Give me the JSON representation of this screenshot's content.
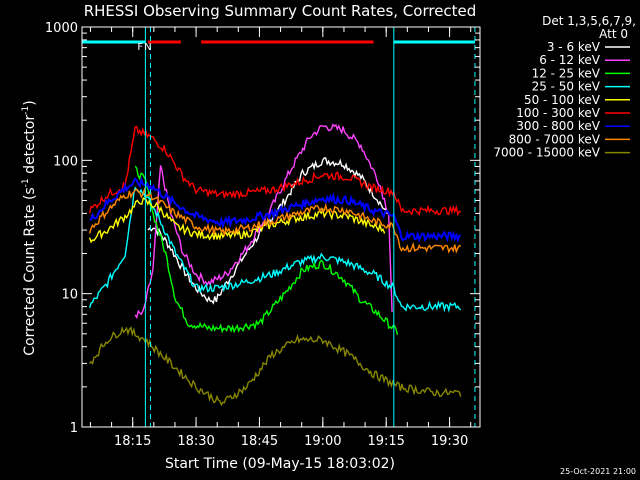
{
  "chart_data": {
    "type": "line",
    "title": "RHESSI Observing Summary Count Rates, Corrected",
    "xlabel": "Start Time (09-May-15 18:03:02)",
    "ylabel_main": "Corrected Count Rate (s",
    "ylabel_sup1": "-1",
    "ylabel_mid": " detector",
    "ylabel_sup2": "-1",
    "ylabel_end": ")",
    "yscale": "log",
    "ylim": [
      1,
      1000
    ],
    "xlim_minutes": [
      18.05,
      19.62
    ],
    "y_ticks": [
      {
        "value": 1,
        "label": "1"
      },
      {
        "value": 10,
        "label": "10"
      },
      {
        "value": 100,
        "label": "100"
      },
      {
        "value": 1000,
        "label": "1000"
      }
    ],
    "x_ticks": [
      {
        "value": 18.25,
        "label": "18:15"
      },
      {
        "value": 18.5,
        "label": "18:30"
      },
      {
        "value": 18.75,
        "label": "18:45"
      },
      {
        "value": 19.0,
        "label": "19:00"
      },
      {
        "value": 19.25,
        "label": "19:15"
      },
      {
        "value": 19.5,
        "label": "19:30"
      }
    ],
    "legend_header": "Det 1,3,5,6,7,9,",
    "legend_att": "Att 0",
    "legend_position": "top-right",
    "series": [
      {
        "name": "3 - 6 keV",
        "color": "#ffffff",
        "points": [
          [
            18.31,
            30
          ],
          [
            18.33,
            32
          ],
          [
            18.36,
            28
          ],
          [
            18.4,
            22
          ],
          [
            18.45,
            15
          ],
          [
            18.5,
            11
          ],
          [
            18.55,
            9
          ],
          [
            18.58,
            9
          ],
          [
            18.62,
            12
          ],
          [
            18.68,
            18
          ],
          [
            18.75,
            28
          ],
          [
            18.85,
            50
          ],
          [
            18.92,
            80
          ],
          [
            19.0,
            100
          ],
          [
            19.08,
            95
          ],
          [
            19.15,
            75
          ],
          [
            19.22,
            50
          ],
          [
            19.26,
            38
          ]
        ]
      },
      {
        "name": "6 - 12 keV",
        "color": "#ff44ff",
        "points": [
          [
            18.26,
            7
          ],
          [
            18.29,
            7
          ],
          [
            18.33,
            15
          ],
          [
            18.36,
            90
          ],
          [
            18.4,
            40
          ],
          [
            18.45,
            20
          ],
          [
            18.5,
            14
          ],
          [
            18.55,
            12
          ],
          [
            18.62,
            14
          ],
          [
            18.7,
            22
          ],
          [
            18.8,
            45
          ],
          [
            18.88,
            90
          ],
          [
            18.95,
            150
          ],
          [
            19.0,
            180
          ],
          [
            19.08,
            170
          ],
          [
            19.15,
            130
          ],
          [
            19.22,
            70
          ],
          [
            19.26,
            40
          ],
          [
            19.28,
            3
          ]
        ]
      },
      {
        "name": "12 - 25 keV",
        "color": "#00ff00",
        "points": [
          [
            18.26,
            85
          ],
          [
            18.3,
            70
          ],
          [
            18.33,
            40
          ],
          [
            18.38,
            20
          ],
          [
            18.42,
            9
          ],
          [
            18.47,
            6
          ],
          [
            18.55,
            5.5
          ],
          [
            18.65,
            5.5
          ],
          [
            18.75,
            6
          ],
          [
            18.85,
            10
          ],
          [
            18.92,
            15
          ],
          [
            19.0,
            17
          ],
          [
            19.08,
            13
          ],
          [
            19.15,
            9
          ],
          [
            19.22,
            7
          ],
          [
            19.3,
            5
          ]
        ]
      },
      {
        "name": "25 - 50 keV",
        "color": "#00ffff",
        "points": [
          [
            18.08,
            8
          ],
          [
            18.15,
            12
          ],
          [
            18.22,
            20
          ],
          [
            18.26,
            65
          ],
          [
            18.3,
            55
          ],
          [
            18.35,
            38
          ],
          [
            18.42,
            20
          ],
          [
            18.5,
            11
          ],
          [
            18.58,
            11
          ],
          [
            18.68,
            12
          ],
          [
            18.8,
            14
          ],
          [
            18.9,
            17
          ],
          [
            19.0,
            19
          ],
          [
            19.1,
            17
          ],
          [
            19.2,
            14
          ],
          [
            19.28,
            11
          ],
          [
            19.31,
            8
          ],
          [
            19.45,
            8
          ],
          [
            19.55,
            8
          ]
        ]
      },
      {
        "name": "50 - 100 keV",
        "color": "#ffff00",
        "points": [
          [
            18.08,
            25
          ],
          [
            18.15,
            30
          ],
          [
            18.22,
            38
          ],
          [
            18.28,
            50
          ],
          [
            18.35,
            45
          ],
          [
            18.42,
            32
          ],
          [
            18.5,
            28
          ],
          [
            18.6,
            27
          ],
          [
            18.7,
            28
          ],
          [
            18.8,
            33
          ],
          [
            18.9,
            37
          ],
          [
            19.0,
            40
          ],
          [
            19.1,
            38
          ],
          [
            19.2,
            32
          ],
          [
            19.25,
            30
          ]
        ]
      },
      {
        "name": "100 - 300 keV",
        "color": "#ff0000",
        "points": [
          [
            18.08,
            42
          ],
          [
            18.15,
            55
          ],
          [
            18.22,
            65
          ],
          [
            18.26,
            170
          ],
          [
            18.32,
            150
          ],
          [
            18.38,
            120
          ],
          [
            18.45,
            75
          ],
          [
            18.5,
            60
          ],
          [
            18.6,
            55
          ],
          [
            18.7,
            57
          ],
          [
            18.8,
            60
          ],
          [
            18.9,
            68
          ],
          [
            19.0,
            78
          ],
          [
            19.1,
            75
          ],
          [
            19.2,
            62
          ],
          [
            19.28,
            58
          ],
          [
            19.31,
            42
          ],
          [
            19.45,
            42
          ],
          [
            19.55,
            42
          ]
        ]
      },
      {
        "name": "300 - 800 keV",
        "color": "#0000ff",
        "points": [
          [
            18.08,
            35
          ],
          [
            18.15,
            48
          ],
          [
            18.22,
            62
          ],
          [
            18.26,
            68
          ],
          [
            18.32,
            65
          ],
          [
            18.4,
            50
          ],
          [
            18.5,
            38
          ],
          [
            18.6,
            34
          ],
          [
            18.7,
            36
          ],
          [
            18.8,
            40
          ],
          [
            18.9,
            46
          ],
          [
            19.0,
            52
          ],
          [
            19.1,
            50
          ],
          [
            19.2,
            42
          ],
          [
            19.28,
            38
          ],
          [
            19.31,
            27
          ],
          [
            19.45,
            27
          ],
          [
            19.55,
            27
          ]
        ]
      },
      {
        "name": "800 - 7000 keV",
        "color": "#ff8800",
        "points": [
          [
            18.08,
            30
          ],
          [
            18.15,
            42
          ],
          [
            18.22,
            55
          ],
          [
            18.26,
            58
          ],
          [
            18.32,
            55
          ],
          [
            18.4,
            42
          ],
          [
            18.5,
            32
          ],
          [
            18.6,
            29
          ],
          [
            18.7,
            31
          ],
          [
            18.8,
            35
          ],
          [
            18.9,
            40
          ],
          [
            19.0,
            44
          ],
          [
            19.1,
            42
          ],
          [
            19.2,
            35
          ],
          [
            19.28,
            32
          ],
          [
            19.31,
            22
          ],
          [
            19.45,
            22
          ],
          [
            19.55,
            22
          ]
        ]
      },
      {
        "name": "7000 - 15000 keV",
        "color": "#888800",
        "points": [
          [
            18.08,
            3
          ],
          [
            18.15,
            4.5
          ],
          [
            18.22,
            5.5
          ],
          [
            18.3,
            4.5
          ],
          [
            18.4,
            3
          ],
          [
            18.5,
            2
          ],
          [
            18.6,
            1.5
          ],
          [
            18.7,
            2
          ],
          [
            18.8,
            3.5
          ],
          [
            18.9,
            4.5
          ],
          [
            19.0,
            4.5
          ],
          [
            19.1,
            3.5
          ],
          [
            19.2,
            2.5
          ],
          [
            19.3,
            2
          ],
          [
            19.45,
            1.8
          ],
          [
            19.55,
            1.8
          ]
        ]
      }
    ],
    "annotations": [
      {
        "label": "F",
        "color": "#ff2222",
        "x": 18.28
      },
      {
        "label": "N",
        "color": "#00ffff",
        "x": 18.31
      }
    ],
    "status_bars": [
      {
        "color": "#00ffff",
        "start": 18.05,
        "end": 18.3
      },
      {
        "color": "#ff0000",
        "start": 18.31,
        "end": 18.44
      },
      {
        "color": "#ff0000",
        "start": 18.52,
        "end": 19.2
      },
      {
        "color": "#00ffff",
        "start": 19.28,
        "end": 19.6
      }
    ],
    "vertical_lines": [
      {
        "x": 18.3,
        "color": "#00ffff",
        "style": "solid"
      },
      {
        "x": 18.32,
        "color": "#00ffff",
        "style": "dashed"
      },
      {
        "x": 19.28,
        "color": "#00ffff",
        "style": "solid"
      },
      {
        "x": 19.6,
        "color": "#00ffff",
        "style": "dashed"
      }
    ],
    "footer_timestamp": "25-Oct-2021 21:00"
  }
}
